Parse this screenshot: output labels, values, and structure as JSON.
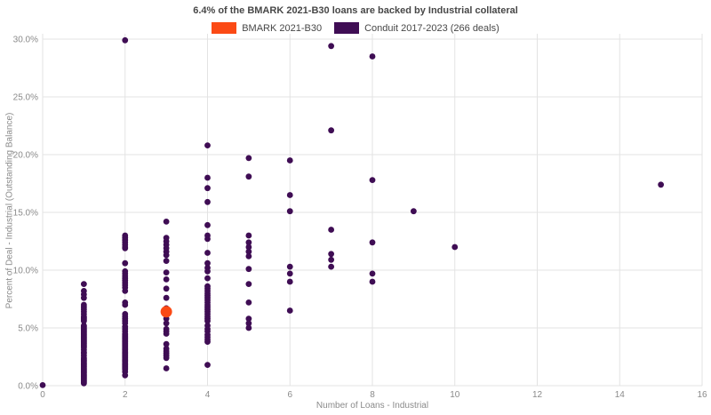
{
  "header": {
    "title": "6.4% of the BMARK 2021-B30 loans are backed by Industrial collateral"
  },
  "legend": [
    {
      "label": "BMARK 2021-B30",
      "color": "#fb4a15"
    },
    {
      "label": "Conduit 2017-2023 (266 deals)",
      "color": "#3f0d54"
    }
  ],
  "axes": {
    "x_title": "Number of Loans - Industrial",
    "y_title": "Percent of Deal - Industrial (Outstanding Balance)"
  },
  "chart_data": {
    "type": "scatter",
    "title": "6.4% of the BMARK 2021-B30 loans are backed by Industrial collateral",
    "xlabel": "Number of Loans - Industrial",
    "ylabel": "Percent of Deal - Industrial (Outstanding Balance)",
    "xlim": [
      0,
      16
    ],
    "ylim": [
      0,
      30
    ],
    "x_ticks": [
      0,
      2,
      4,
      6,
      8,
      10,
      12,
      14,
      16
    ],
    "y_tick_values": [
      0,
      5,
      10,
      15,
      20,
      25,
      30
    ],
    "y_tick_labels": [
      "0.0%",
      "5.0%",
      "10.0%",
      "15.0%",
      "20.0%",
      "25.0%",
      "30.0%"
    ],
    "grid": true,
    "grid_color": "#e3e3e3",
    "legend_position": "top-center",
    "series": [
      {
        "name": "Conduit 2017-2023 (266 deals)",
        "color": "#3f0d54",
        "marker_radius": 3.4,
        "points": [
          [
            0,
            0.05
          ],
          [
            1,
            8.8
          ],
          [
            1,
            8.2
          ],
          [
            1,
            7.9
          ],
          [
            1,
            7.6
          ],
          [
            1,
            7.0
          ],
          [
            1,
            6.8
          ],
          [
            1,
            6.6
          ],
          [
            1,
            6.4
          ],
          [
            1,
            6.2
          ],
          [
            1,
            6.0
          ],
          [
            1,
            5.9
          ],
          [
            1,
            5.8
          ],
          [
            1,
            5.7
          ],
          [
            1,
            5.6
          ],
          [
            1,
            5.2
          ],
          [
            1,
            5.1
          ],
          [
            1,
            5.0
          ],
          [
            1,
            4.9
          ],
          [
            1,
            4.8
          ],
          [
            1,
            4.7
          ],
          [
            1,
            4.6
          ],
          [
            1,
            4.5
          ],
          [
            1,
            4.4
          ],
          [
            1,
            4.3
          ],
          [
            1,
            4.2
          ],
          [
            1,
            4.1
          ],
          [
            1,
            4.0
          ],
          [
            1,
            3.9
          ],
          [
            1,
            3.8
          ],
          [
            1,
            3.7
          ],
          [
            1,
            3.6
          ],
          [
            1,
            3.5
          ],
          [
            1,
            3.4
          ],
          [
            1,
            3.3
          ],
          [
            1,
            3.1
          ],
          [
            1,
            2.9
          ],
          [
            1,
            2.8
          ],
          [
            1,
            2.6
          ],
          [
            1,
            2.4
          ],
          [
            1,
            2.3
          ],
          [
            1,
            2.2
          ],
          [
            1,
            2.1
          ],
          [
            1,
            2.0
          ],
          [
            1,
            1.9
          ],
          [
            1,
            1.8
          ],
          [
            1,
            1.7
          ],
          [
            1,
            1.6
          ],
          [
            1,
            1.5
          ],
          [
            1,
            1.4
          ],
          [
            1,
            1.3
          ],
          [
            1,
            1.2
          ],
          [
            1,
            1.1
          ],
          [
            1,
            1.0
          ],
          [
            1,
            0.9
          ],
          [
            1,
            0.8
          ],
          [
            1,
            0.7
          ],
          [
            1,
            0.6
          ],
          [
            1,
            0.5
          ],
          [
            1,
            0.4
          ],
          [
            1,
            0.3
          ],
          [
            1,
            0.2
          ],
          [
            2,
            29.9
          ],
          [
            2,
            13.0
          ],
          [
            2,
            12.8
          ],
          [
            2,
            12.6
          ],
          [
            2,
            12.4
          ],
          [
            2,
            12.2
          ],
          [
            2,
            12.0
          ],
          [
            2,
            11.9
          ],
          [
            2,
            10.6
          ],
          [
            2,
            9.9
          ],
          [
            2,
            9.7
          ],
          [
            2,
            9.5
          ],
          [
            2,
            9.3
          ],
          [
            2,
            9.1
          ],
          [
            2,
            8.9
          ],
          [
            2,
            8.7
          ],
          [
            2,
            8.5
          ],
          [
            2,
            8.2
          ],
          [
            2,
            7.2
          ],
          [
            2,
            7.0
          ],
          [
            2,
            6.2
          ],
          [
            2,
            6.0
          ],
          [
            2,
            5.8
          ],
          [
            2,
            5.6
          ],
          [
            2,
            5.4
          ],
          [
            2,
            5.1
          ],
          [
            2,
            4.9
          ],
          [
            2,
            4.7
          ],
          [
            2,
            4.5
          ],
          [
            2,
            4.4
          ],
          [
            2,
            4.3
          ],
          [
            2,
            4.2
          ],
          [
            2,
            4.1
          ],
          [
            2,
            4.0
          ],
          [
            2,
            3.9
          ],
          [
            2,
            3.8
          ],
          [
            2,
            3.7
          ],
          [
            2,
            3.6
          ],
          [
            2,
            3.5
          ],
          [
            2,
            3.4
          ],
          [
            2,
            3.3
          ],
          [
            2,
            3.2
          ],
          [
            2,
            3.1
          ],
          [
            2,
            3.0
          ],
          [
            2,
            2.9
          ],
          [
            2,
            2.8
          ],
          [
            2,
            2.7
          ],
          [
            2,
            2.6
          ],
          [
            2,
            2.5
          ],
          [
            2,
            2.4
          ],
          [
            2,
            2.3
          ],
          [
            2,
            2.2
          ],
          [
            2,
            2.1
          ],
          [
            2,
            2.0
          ],
          [
            2,
            1.9
          ],
          [
            2,
            1.8
          ],
          [
            2,
            1.7
          ],
          [
            2,
            1.6
          ],
          [
            2,
            1.5
          ],
          [
            2,
            1.4
          ],
          [
            2,
            1.2
          ],
          [
            2,
            0.9
          ],
          [
            3,
            14.2
          ],
          [
            3,
            12.8
          ],
          [
            3,
            12.5
          ],
          [
            3,
            12.2
          ],
          [
            3,
            11.9
          ],
          [
            3,
            11.6
          ],
          [
            3,
            11.3
          ],
          [
            3,
            10.8
          ],
          [
            3,
            9.8
          ],
          [
            3,
            9.2
          ],
          [
            3,
            8.4
          ],
          [
            3,
            7.6
          ],
          [
            3,
            6.7
          ],
          [
            3,
            5.8
          ],
          [
            3,
            5.4
          ],
          [
            3,
            4.9
          ],
          [
            3,
            4.7
          ],
          [
            3,
            4.5
          ],
          [
            3,
            3.6
          ],
          [
            3,
            3.2
          ],
          [
            3,
            3.0
          ],
          [
            3,
            2.8
          ],
          [
            3,
            2.6
          ],
          [
            3,
            2.4
          ],
          [
            3,
            1.5
          ],
          [
            4,
            20.8
          ],
          [
            4,
            18.0
          ],
          [
            4,
            17.1
          ],
          [
            4,
            15.9
          ],
          [
            4,
            13.9
          ],
          [
            4,
            13.0
          ],
          [
            4,
            12.7
          ],
          [
            4,
            11.5
          ],
          [
            4,
            10.6
          ],
          [
            4,
            10.2
          ],
          [
            4,
            9.9
          ],
          [
            4,
            9.3
          ],
          [
            4,
            8.6
          ],
          [
            4,
            8.4
          ],
          [
            4,
            8.2
          ],
          [
            4,
            8.0
          ],
          [
            4,
            7.8
          ],
          [
            4,
            7.6
          ],
          [
            4,
            7.4
          ],
          [
            4,
            7.2
          ],
          [
            4,
            7.0
          ],
          [
            4,
            6.8
          ],
          [
            4,
            6.6
          ],
          [
            4,
            6.4
          ],
          [
            4,
            6.2
          ],
          [
            4,
            6.0
          ],
          [
            4,
            5.8
          ],
          [
            4,
            5.6
          ],
          [
            4,
            5.2
          ],
          [
            4,
            4.9
          ],
          [
            4,
            4.7
          ],
          [
            4,
            4.4
          ],
          [
            4,
            4.2
          ],
          [
            4,
            4.0
          ],
          [
            4,
            3.8
          ],
          [
            4,
            1.8
          ],
          [
            5,
            19.7
          ],
          [
            5,
            18.1
          ],
          [
            5,
            13.0
          ],
          [
            5,
            12.4
          ],
          [
            5,
            12.0
          ],
          [
            5,
            11.6
          ],
          [
            5,
            11.2
          ],
          [
            5,
            10.1
          ],
          [
            5,
            8.8
          ],
          [
            5,
            7.2
          ],
          [
            5,
            5.8
          ],
          [
            5,
            5.4
          ],
          [
            5,
            5.0
          ],
          [
            6,
            19.5
          ],
          [
            6,
            16.5
          ],
          [
            6,
            15.1
          ],
          [
            6,
            10.3
          ],
          [
            6,
            9.7
          ],
          [
            6,
            9.0
          ],
          [
            6,
            6.5
          ],
          [
            7,
            29.4
          ],
          [
            7,
            22.1
          ],
          [
            7,
            13.5
          ],
          [
            7,
            11.4
          ],
          [
            7,
            10.9
          ],
          [
            7,
            10.3
          ],
          [
            8,
            28.5
          ],
          [
            8,
            17.8
          ],
          [
            8,
            12.4
          ],
          [
            8,
            9.7
          ],
          [
            8,
            9.0
          ],
          [
            9,
            15.1
          ],
          [
            10,
            12.0
          ],
          [
            15,
            17.4
          ]
        ]
      },
      {
        "name": "BMARK 2021-B30",
        "color": "#fb4a15",
        "marker_radius": 6.5,
        "points": [
          [
            3,
            6.4
          ]
        ]
      }
    ]
  }
}
